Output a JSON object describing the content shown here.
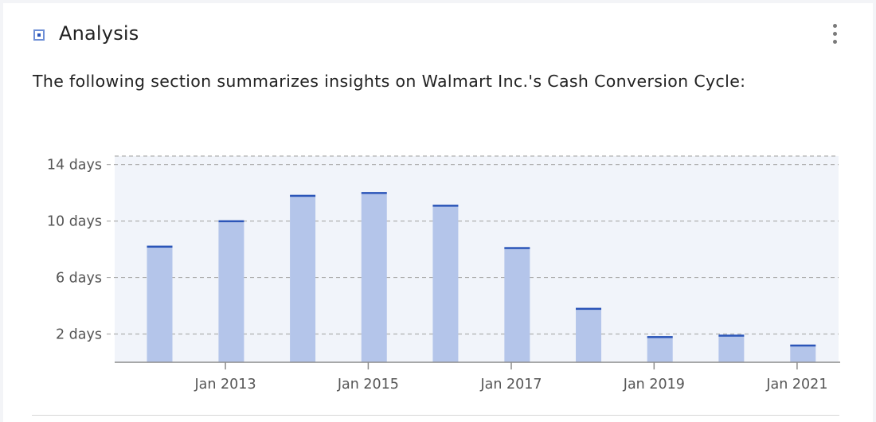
{
  "header": {
    "title": "Analysis",
    "icon": "square-bullet-icon",
    "menu_icon": "more-vertical-icon"
  },
  "summary": "The following section summarizes insights on Walmart Inc.'s Cash Conversion Cycle:",
  "colors": {
    "bar_fill": "#b4c5ea",
    "bar_top": "#2b55b8",
    "plot_bg": "#f1f4fa",
    "grid": "#b0b0b0"
  },
  "chart_data": {
    "type": "bar",
    "title": "",
    "xlabel": "",
    "ylabel": "",
    "x_tick_labels": [
      "Jan 2013",
      "Jan 2015",
      "Jan 2017",
      "Jan 2019",
      "Jan 2021"
    ],
    "y_tick_labels": [
      "14 days",
      "10 days",
      "6 days",
      "2 days"
    ],
    "y_ticks": [
      14,
      10,
      6,
      2
    ],
    "ylim": [
      0,
      14.6
    ],
    "xlim": [
      "2011-06-15",
      "2021-08-01"
    ],
    "grid": true,
    "series": [
      {
        "dates": [
          "2012-01-31",
          "2013-01-31",
          "2014-01-31",
          "2015-01-31",
          "2016-01-31",
          "2017-01-31",
          "2018-01-31",
          "2019-01-31",
          "2020-01-31",
          "2021-01-31"
        ],
        "values": [
          8.2,
          10.0,
          11.8,
          12.0,
          11.1,
          8.1,
          3.8,
          1.8,
          1.9,
          1.2
        ]
      }
    ]
  }
}
